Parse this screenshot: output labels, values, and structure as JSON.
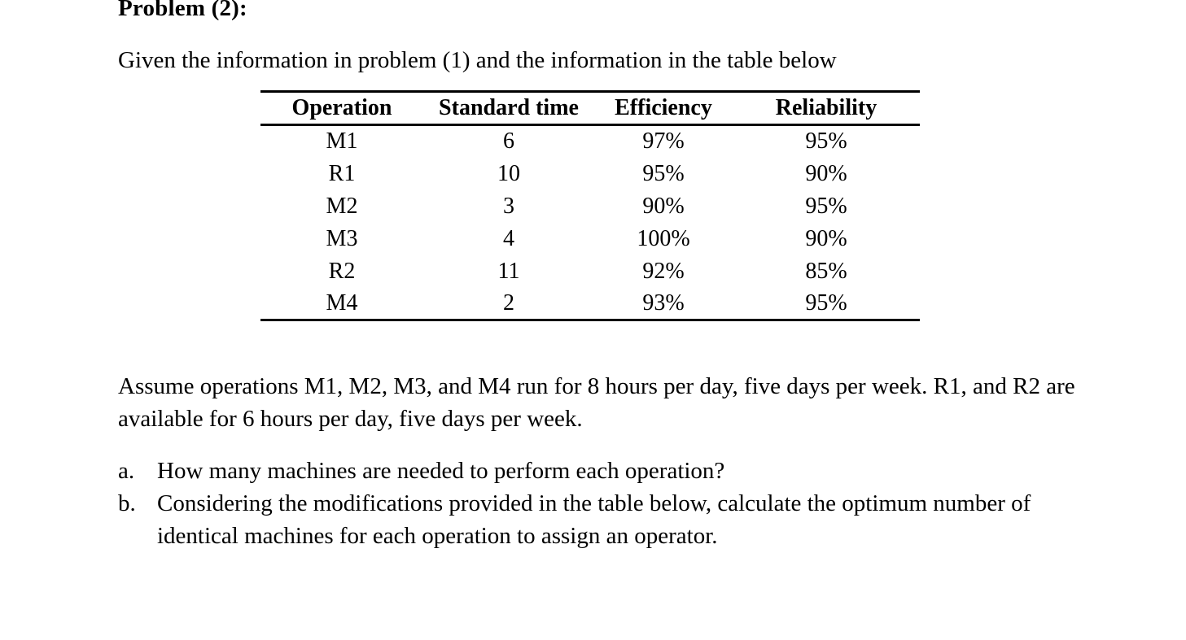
{
  "page": {
    "title": "Problem (2):",
    "intro": "Given the information in problem (1) and the information in the table below"
  },
  "table": {
    "headers": [
      "Operation",
      "Standard time",
      "Efficiency",
      "Reliability"
    ],
    "rows": [
      [
        "M1",
        "6",
        "97%",
        "95%"
      ],
      [
        "R1",
        "10",
        "95%",
        "90%"
      ],
      [
        "M2",
        "3",
        "90%",
        "95%"
      ],
      [
        "M3",
        "4",
        "100%",
        "90%"
      ],
      [
        "R2",
        "11",
        "92%",
        "85%"
      ],
      [
        "M4",
        "2",
        "93%",
        "95%"
      ]
    ]
  },
  "assumption": "Assume operations M1, M2, M3, and M4 run for 8 hours per day, five days per week. R1, and R2 are available for 6 hours per day, five days per week.",
  "questions": [
    {
      "marker": "a.",
      "text": "How many machines are needed to perform each operation?"
    },
    {
      "marker": "b.",
      "text": "Considering the modifications provided in the table below, calculate the optimum number of identical machines for each operation to assign an operator."
    }
  ],
  "colors": {
    "text": "#000000",
    "background": "#ffffff",
    "table_rule": "#000000"
  }
}
